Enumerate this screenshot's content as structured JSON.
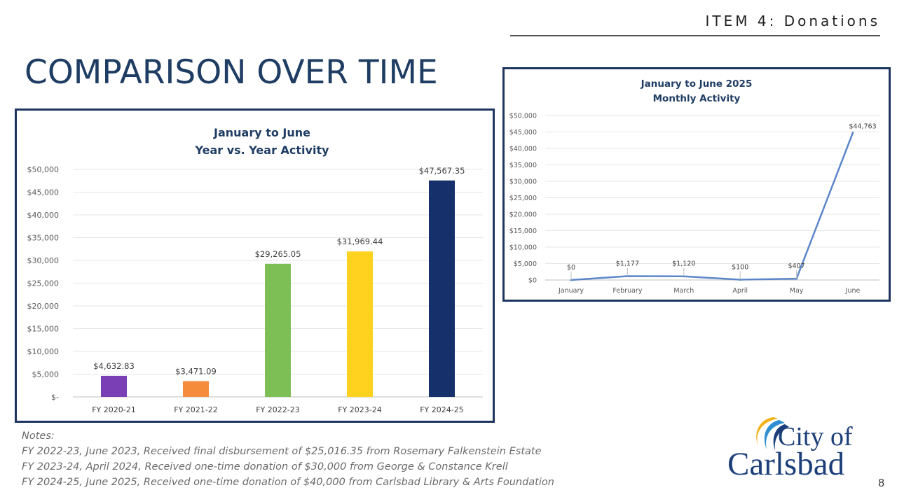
{
  "header": {
    "item": "ITEM 4: Donations",
    "title": "COMPARISON OVER TIME"
  },
  "colors": {
    "title": "#1f3d63",
    "frame": "#1e3560",
    "line": "#5b87c9"
  },
  "chart_data": [
    {
      "type": "bar",
      "title": "January to June",
      "subtitle": "Year vs. Year Activity",
      "categories": [
        "FY 2020-21",
        "FY 2021-22",
        "FY 2022-23",
        "FY 2023-24",
        "FY 2024-25"
      ],
      "values": [
        4632.83,
        3471.09,
        29265.05,
        31969.44,
        47567.35
      ],
      "data_labels": [
        "$4,632.83",
        "$3,471.09",
        "$29,265.05",
        "$31,969.44",
        "$47,567.35"
      ],
      "bar_colors": [
        "#7b3fb5",
        "#f58c3c",
        "#7dbf55",
        "#ffd21f",
        "#15306a"
      ],
      "ylim": [
        0,
        50000
      ],
      "yticks": [
        0,
        5000,
        10000,
        15000,
        20000,
        25000,
        30000,
        35000,
        40000,
        45000,
        50000
      ],
      "ytick_labels": [
        "$-",
        "$5,000",
        "$10,000",
        "$15,000",
        "$20,000",
        "$25,000",
        "$30,000",
        "$35,000",
        "$40,000",
        "$45,000",
        "$50,000"
      ],
      "grid": true,
      "xlabel": "",
      "ylabel": ""
    },
    {
      "type": "line",
      "title": "January to June 2025",
      "subtitle": "Monthly Activity",
      "categories": [
        "January",
        "February",
        "March",
        "April",
        "May",
        "June"
      ],
      "values": [
        0,
        1177,
        1120,
        100,
        407,
        44763
      ],
      "data_labels": [
        "$0",
        "$1,177",
        "$1,120",
        "$100",
        "$407",
        "$44,763"
      ],
      "ylim": [
        0,
        50000
      ],
      "yticks": [
        0,
        5000,
        10000,
        15000,
        20000,
        25000,
        30000,
        35000,
        40000,
        45000,
        50000
      ],
      "ytick_labels": [
        "$0",
        "$5,000",
        "$10,000",
        "$15,000",
        "$20,000",
        "$25,000",
        "$30,000",
        "$35,000",
        "$40,000",
        "$45,000",
        "$50,000"
      ],
      "grid": true,
      "xlabel": "",
      "ylabel": ""
    }
  ],
  "notes": {
    "heading": "Notes:",
    "lines": [
      "FY 2022-23, June 2023, Received final disbursement of $25,016.35 from Rosemary Falkenstein Estate",
      "FY 2023-24, April 2024, Received one-time donation of $30,000 from George & Constance Krell",
      "FY 2024-25, June 2025, Received one-time donation of $40,000 from Carlsbad Library & Arts Foundation"
    ]
  },
  "logo": {
    "line1": "City of",
    "line2": "Carlsbad"
  },
  "page_number": "8"
}
